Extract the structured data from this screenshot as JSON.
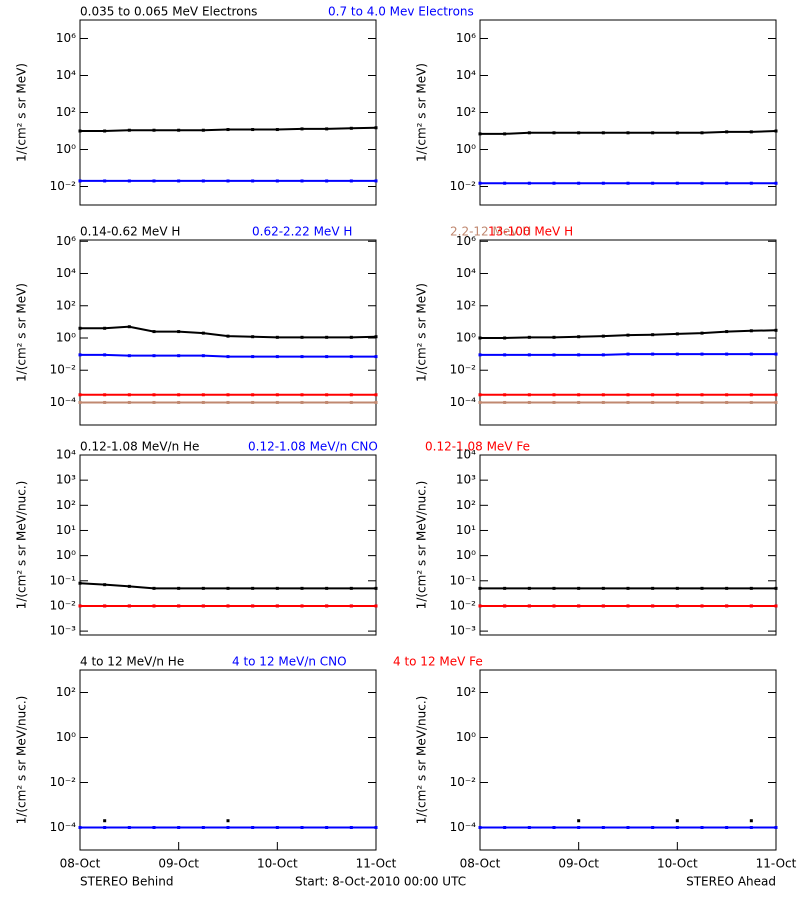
{
  "footer": {
    "left": "STEREO Behind",
    "center": "Start:  8-Oct-2010 00:00 UTC",
    "right": "STEREO Ahead"
  },
  "chart_data": [
    {
      "type": "scatter",
      "log_y": true,
      "ylabel": "1/(cm² s sr MeV)",
      "xlim": [
        0,
        3
      ],
      "ylim": [
        0.001,
        10000000
      ],
      "yticks": [
        {
          "value": 0.01,
          "label": "10⁻²"
        },
        {
          "value": 1,
          "label": "10⁰"
        },
        {
          "value": 100,
          "label": "10²"
        },
        {
          "value": 10000,
          "label": "10⁴"
        },
        {
          "value": 1000000,
          "label": "10⁶"
        }
      ],
      "x": [
        0,
        0.25,
        0.5,
        0.75,
        1,
        1.25,
        1.5,
        1.75,
        2,
        2.25,
        2.5,
        2.75,
        3
      ],
      "series": [
        {
          "name": "0.035 to 0.065 MeV Electrons",
          "color": "#000000",
          "values": [
            10,
            10,
            11,
            11,
            11,
            11,
            12,
            12,
            12,
            13,
            13,
            14,
            15
          ]
        },
        {
          "name": "0.7 to 4.0 Mev Electrons",
          "color": "#0000ff",
          "values": [
            0.02,
            0.02,
            0.02,
            0.02,
            0.02,
            0.02,
            0.02,
            0.02,
            0.02,
            0.02,
            0.02,
            0.02,
            0.02
          ]
        }
      ]
    },
    {
      "type": "scatter",
      "log_y": true,
      "ylabel": "1/(cm² s sr MeV)",
      "xlim": [
        0,
        3
      ],
      "ylim": [
        0.001,
        10000000
      ],
      "yticks": [
        {
          "value": 0.01,
          "label": "10⁻²"
        },
        {
          "value": 1,
          "label": "10⁰"
        },
        {
          "value": 100,
          "label": "10²"
        },
        {
          "value": 10000,
          "label": "10⁴"
        },
        {
          "value": 1000000,
          "label": "10⁶"
        }
      ],
      "x": [
        0,
        0.25,
        0.5,
        0.75,
        1,
        1.25,
        1.5,
        1.75,
        2,
        2.25,
        2.5,
        2.75,
        3
      ],
      "series": [
        {
          "color": "#000000",
          "values": [
            7,
            7,
            8,
            8,
            8,
            8,
            8,
            8,
            8,
            8,
            9,
            9,
            10
          ]
        },
        {
          "color": "#0000ff",
          "values": [
            0.015,
            0.015,
            0.015,
            0.015,
            0.015,
            0.015,
            0.015,
            0.015,
            0.015,
            0.015,
            0.015,
            0.015,
            0.015
          ]
        }
      ]
    },
    {
      "type": "scatter",
      "log_y": true,
      "ylabel": "1/(cm² s sr MeV)",
      "xlim": [
        0,
        3
      ],
      "ylim": [
        4e-06,
        1200000
      ],
      "yticks": [
        {
          "value": 0.0001,
          "label": "10⁻⁴"
        },
        {
          "value": 0.01,
          "label": "10⁻²"
        },
        {
          "value": 1,
          "label": "10⁰"
        },
        {
          "value": 100,
          "label": "10²"
        },
        {
          "value": 10000,
          "label": "10⁴"
        },
        {
          "value": 1000000,
          "label": "10⁶"
        }
      ],
      "x": [
        0,
        0.25,
        0.5,
        0.75,
        1,
        1.25,
        1.5,
        1.75,
        2,
        2.25,
        2.5,
        2.75,
        3
      ],
      "series": [
        {
          "name": "0.14-0.62 MeV H",
          "color": "#000000",
          "values": [
            4,
            4,
            5,
            2.5,
            2.5,
            2,
            1.3,
            1.2,
            1.1,
            1.1,
            1.1,
            1.1,
            1.2
          ]
        },
        {
          "name": "0.62-2.22 MeV H",
          "color": "#0000ff",
          "values": [
            0.09,
            0.09,
            0.08,
            0.08,
            0.08,
            0.08,
            0.07,
            0.07,
            0.07,
            0.07,
            0.07,
            0.07,
            0.07
          ]
        },
        {
          "name": "2.2-12 MeV H",
          "color": "#c08870",
          "values": [
            0.0001,
            0.0001,
            0.0001,
            0.0001,
            0.0001,
            0.0001,
            0.0001,
            0.0001,
            0.0001,
            0.0001,
            0.0001,
            0.0001,
            0.0001
          ]
        },
        {
          "name": "13-100 MeV H",
          "color": "#ff0000",
          "values": [
            0.0003,
            0.0003,
            0.0003,
            0.0003,
            0.0003,
            0.0003,
            0.0003,
            0.0003,
            0.0003,
            0.0003,
            0.0003,
            0.0003,
            0.0003
          ]
        }
      ]
    },
    {
      "type": "scatter",
      "log_y": true,
      "ylabel": "1/(cm² s sr MeV)",
      "xlim": [
        0,
        3
      ],
      "ylim": [
        4e-06,
        1200000
      ],
      "yticks": [
        {
          "value": 0.0001,
          "label": "10⁻⁴"
        },
        {
          "value": 0.01,
          "label": "10⁻²"
        },
        {
          "value": 1,
          "label": "10⁰"
        },
        {
          "value": 100,
          "label": "10²"
        },
        {
          "value": 10000,
          "label": "10⁴"
        },
        {
          "value": 1000000,
          "label": "10⁶"
        }
      ],
      "x": [
        0,
        0.25,
        0.5,
        0.75,
        1,
        1.25,
        1.5,
        1.75,
        2,
        2.25,
        2.5,
        2.75,
        3
      ],
      "series": [
        {
          "color": "#000000",
          "values": [
            1,
            1,
            1.1,
            1.1,
            1.2,
            1.3,
            1.5,
            1.6,
            1.8,
            2,
            2.5,
            2.8,
            3
          ]
        },
        {
          "color": "#0000ff",
          "values": [
            0.09,
            0.09,
            0.09,
            0.09,
            0.09,
            0.09,
            0.1,
            0.1,
            0.1,
            0.1,
            0.1,
            0.1,
            0.1
          ]
        },
        {
          "color": "#c08870",
          "values": [
            0.0001,
            0.0001,
            0.0001,
            0.0001,
            0.0001,
            0.0001,
            0.0001,
            0.0001,
            0.0001,
            0.0001,
            0.0001,
            0.0001,
            0.0001
          ]
        },
        {
          "color": "#ff0000",
          "values": [
            0.0003,
            0.0003,
            0.0003,
            0.0003,
            0.0003,
            0.0003,
            0.0003,
            0.0003,
            0.0003,
            0.0003,
            0.0003,
            0.0003,
            0.0003
          ]
        }
      ]
    },
    {
      "type": "scatter",
      "log_y": true,
      "ylabel": "1/(cm² s sr MeV/nuc.)",
      "xlim": [
        0,
        3
      ],
      "ylim": [
        0.0007,
        10000
      ],
      "yticks": [
        {
          "value": 0.001,
          "label": "10⁻³"
        },
        {
          "value": 0.01,
          "label": "10⁻²"
        },
        {
          "value": 0.1,
          "label": "10⁻¹"
        },
        {
          "value": 1,
          "label": "10⁰"
        },
        {
          "value": 10,
          "label": "10¹"
        },
        {
          "value": 100,
          "label": "10²"
        },
        {
          "value": 1000,
          "label": "10³"
        },
        {
          "value": 10000,
          "label": "10⁴"
        }
      ],
      "x": [
        0,
        0.25,
        0.5,
        0.75,
        1,
        1.25,
        1.5,
        1.75,
        2,
        2.25,
        2.5,
        2.75,
        3
      ],
      "series": [
        {
          "name": "0.12-1.08 MeV/n He",
          "color": "#000000",
          "values": [
            0.08,
            0.07,
            0.06,
            0.05,
            0.05,
            0.05,
            0.05,
            0.05,
            0.05,
            0.05,
            0.05,
            0.05,
            0.05
          ]
        },
        {
          "name": "0.12-1.08 MeV/n CNO",
          "color": "#0000ff",
          "values": [
            0.01,
            0.01,
            0.01,
            0.01,
            0.01,
            0.01,
            0.01,
            0.01,
            0.01,
            0.01,
            0.01,
            0.01,
            0.01
          ]
        },
        {
          "name": "0.12-1.08 MeV Fe",
          "color": "#ff0000",
          "values": [
            0.01,
            0.01,
            0.01,
            0.01,
            0.01,
            0.01,
            0.01,
            0.01,
            0.01,
            0.01,
            0.01,
            0.01,
            0.01
          ]
        }
      ]
    },
    {
      "type": "scatter",
      "log_y": true,
      "ylabel": "1/(cm² s sr MeV/nuc.)",
      "xlim": [
        0,
        3
      ],
      "ylim": [
        0.0007,
        10000
      ],
      "yticks": [
        {
          "value": 0.001,
          "label": "10⁻³"
        },
        {
          "value": 0.01,
          "label": "10⁻²"
        },
        {
          "value": 0.1,
          "label": "10⁻¹"
        },
        {
          "value": 1,
          "label": "10⁰"
        },
        {
          "value": 10,
          "label": "10¹"
        },
        {
          "value": 100,
          "label": "10²"
        },
        {
          "value": 1000,
          "label": "10³"
        },
        {
          "value": 10000,
          "label": "10⁴"
        }
      ],
      "x": [
        0,
        0.25,
        0.5,
        0.75,
        1,
        1.25,
        1.5,
        1.75,
        2,
        2.25,
        2.5,
        2.75,
        3
      ],
      "series": [
        {
          "color": "#000000",
          "values": [
            0.05,
            0.05,
            0.05,
            0.05,
            0.05,
            0.05,
            0.05,
            0.05,
            0.05,
            0.05,
            0.05,
            0.05,
            0.05
          ]
        },
        {
          "color": "#0000ff",
          "values": [
            0.01,
            0.01,
            0.01,
            0.01,
            0.01,
            0.01,
            0.01,
            0.01,
            0.01,
            0.01,
            0.01,
            0.01,
            0.01
          ]
        },
        {
          "color": "#ff0000",
          "values": [
            0.01,
            0.01,
            0.01,
            0.01,
            0.01,
            0.01,
            0.01,
            0.01,
            0.01,
            0.01,
            0.01,
            0.01,
            0.01
          ]
        }
      ]
    },
    {
      "type": "scatter",
      "log_y": true,
      "ylabel": "1/(cm² s sr MeV/nuc.)",
      "xlim": [
        0,
        3
      ],
      "ylim": [
        1e-05,
        1000
      ],
      "yticks": [
        {
          "value": 0.0001,
          "label": "10⁻⁴"
        },
        {
          "value": 0.01,
          "label": "10⁻²"
        },
        {
          "value": 1,
          "label": "10⁰"
        },
        {
          "value": 100,
          "label": "10²"
        }
      ],
      "xticks": [
        {
          "value": 0,
          "label": "08-Oct"
        },
        {
          "value": 1,
          "label": "09-Oct"
        },
        {
          "value": 2,
          "label": "10-Oct"
        },
        {
          "value": 3,
          "label": "11-Oct"
        }
      ],
      "x": [
        0,
        0.25,
        0.5,
        0.75,
        1,
        1.25,
        1.5,
        1.75,
        2,
        2.25,
        2.5,
        2.75,
        3
      ],
      "series": [
        {
          "name": "4 to 12 MeV/n He",
          "color": "#000000",
          "values": [
            null,
            0.0002,
            null,
            null,
            null,
            null,
            0.0002,
            null,
            null,
            null,
            null,
            null,
            null
          ]
        },
        {
          "name": "4 to 12 MeV/n CNO",
          "color": "#0000ff",
          "values": [
            0.0001,
            0.0001,
            0.0001,
            0.0001,
            0.0001,
            0.0001,
            0.0001,
            0.0001,
            0.0001,
            0.0001,
            0.0001,
            0.0001,
            0.0001
          ]
        },
        {
          "name": "4 to 12 MeV Fe",
          "color": "#ff0000",
          "values": [
            null,
            null,
            null,
            null,
            null,
            null,
            null,
            null,
            null,
            null,
            null,
            null,
            null
          ]
        }
      ]
    },
    {
      "type": "scatter",
      "log_y": true,
      "ylabel": "1/(cm² s sr MeV/nuc.)",
      "xlim": [
        0,
        3
      ],
      "ylim": [
        1e-05,
        1000
      ],
      "yticks": [
        {
          "value": 0.0001,
          "label": "10⁻⁴"
        },
        {
          "value": 0.01,
          "label": "10⁻²"
        },
        {
          "value": 1,
          "label": "10⁰"
        },
        {
          "value": 100,
          "label": "10²"
        }
      ],
      "xticks": [
        {
          "value": 0,
          "label": "08-Oct"
        },
        {
          "value": 1,
          "label": "09-Oct"
        },
        {
          "value": 2,
          "label": "10-Oct"
        },
        {
          "value": 3,
          "label": "11-Oct"
        }
      ],
      "x": [
        0,
        0.25,
        0.5,
        0.75,
        1,
        1.25,
        1.5,
        1.75,
        2,
        2.25,
        2.5,
        2.75,
        3
      ],
      "series": [
        {
          "color": "#000000",
          "values": [
            null,
            null,
            null,
            null,
            0.0002,
            null,
            null,
            null,
            0.0002,
            null,
            null,
            0.0002,
            null
          ]
        },
        {
          "color": "#0000ff",
          "values": [
            0.0001,
            0.0001,
            0.0001,
            0.0001,
            0.0001,
            0.0001,
            0.0001,
            0.0001,
            0.0001,
            0.0001,
            0.0001,
            0.0001,
            0.0001
          ]
        },
        {
          "color": "#ff0000",
          "values": [
            null,
            null,
            null,
            null,
            null,
            null,
            null,
            null,
            null,
            null,
            null,
            null,
            null
          ]
        }
      ]
    }
  ]
}
